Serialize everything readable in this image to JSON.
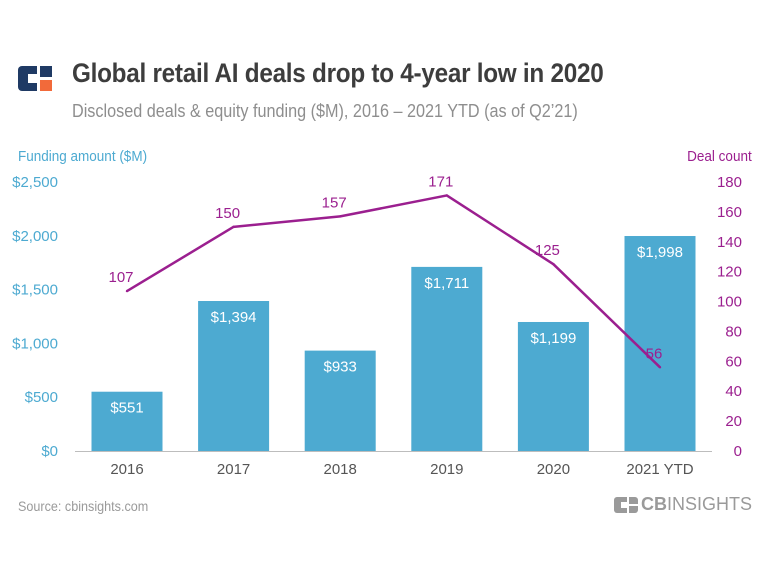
{
  "header": {
    "title": "Global retail AI deals drop to 4-year low in 2020",
    "subtitle": "Disclosed deals & equity funding ($M), 2016 – 2021 YTD (as of Q2’21)",
    "logo_icon": "cb-insights-logo-icon"
  },
  "footer": {
    "source": "Source: cbinsights.com",
    "brand_bold": "CB",
    "brand_light": "INSIGHTS"
  },
  "colors": {
    "bar": "#4daad1",
    "line": "#9b1f8f",
    "axis_left": "#4daad1",
    "axis_right": "#9b1f8f",
    "logo_dark": "#1f3a64",
    "logo_accent": "#f26a3a"
  },
  "chart_data": {
    "type": "bar",
    "title": "Global retail AI deals drop to 4-year low in 2020",
    "subtitle": "Disclosed deals & equity funding ($M), 2016 – 2021 YTD (as of Q2’21)",
    "categories": [
      "2016",
      "2017",
      "2018",
      "2019",
      "2020",
      "2021 YTD"
    ],
    "series": [
      {
        "name": "Funding amount ($M)",
        "type": "bar",
        "axis": "left",
        "values": [
          551,
          1394,
          933,
          1711,
          1199,
          1998
        ],
        "labels": [
          "$551",
          "$1,394",
          "$933",
          "$1,711",
          "$1,199",
          "$1,998"
        ]
      },
      {
        "name": "Deal count",
        "type": "line",
        "axis": "right",
        "values": [
          107,
          150,
          157,
          171,
          125,
          56
        ],
        "labels": [
          "107",
          "150",
          "157",
          "171",
          "125",
          "56"
        ]
      }
    ],
    "y_left": {
      "label": "Funding amount ($M)",
      "range": [
        0,
        2500
      ],
      "ticks": [
        0,
        500,
        1000,
        1500,
        2000,
        2500
      ],
      "tick_labels": [
        "$0",
        "$500",
        "$1,000",
        "$1,500",
        "$2,000",
        "$2,500"
      ]
    },
    "y_right": {
      "label": "Deal count",
      "range": [
        0,
        180
      ],
      "ticks": [
        0,
        20,
        40,
        60,
        80,
        100,
        120,
        140,
        160,
        180
      ],
      "tick_labels": [
        "0",
        "20",
        "40",
        "60",
        "80",
        "100",
        "120",
        "140",
        "160",
        "180"
      ]
    },
    "xlabel": "",
    "grid": false,
    "legend": "none"
  }
}
